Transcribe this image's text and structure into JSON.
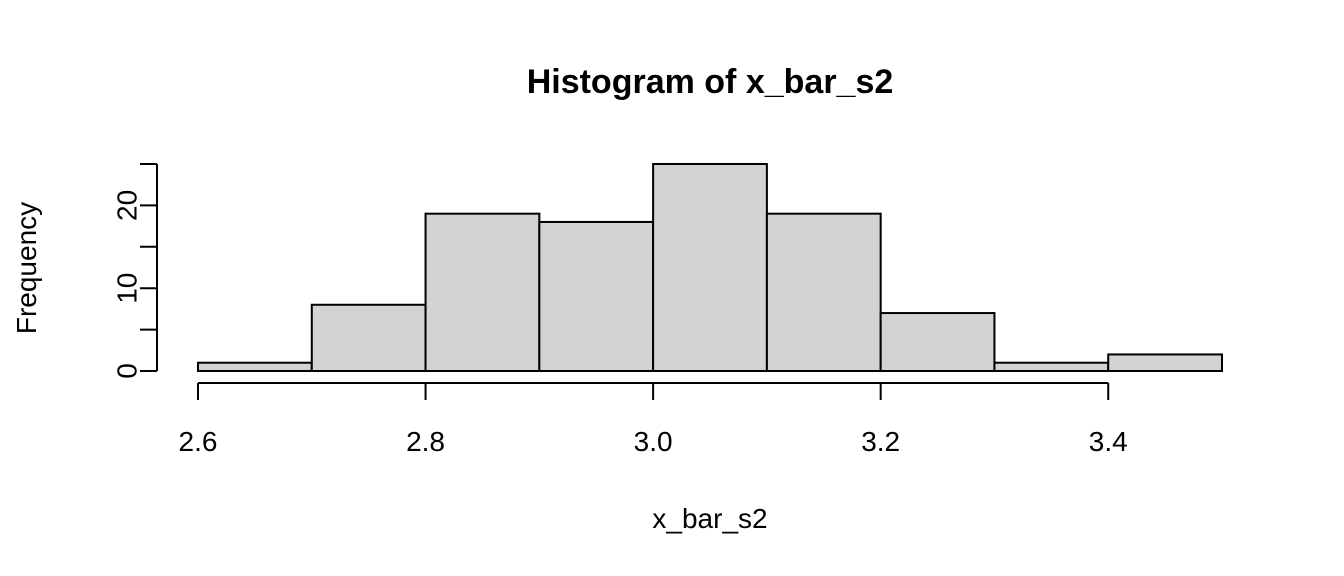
{
  "chart_data": {
    "type": "bar",
    "title": "Histogram of x_bar_s2",
    "xlabel": "x_bar_s2",
    "ylabel": "Frequency",
    "bins": [
      {
        "x0": 2.6,
        "x1": 2.7,
        "count": 1
      },
      {
        "x0": 2.7,
        "x1": 2.8,
        "count": 8
      },
      {
        "x0": 2.8,
        "x1": 2.9,
        "count": 19
      },
      {
        "x0": 2.9,
        "x1": 3.0,
        "count": 18
      },
      {
        "x0": 3.0,
        "x1": 3.1,
        "count": 25
      },
      {
        "x0": 3.1,
        "x1": 3.2,
        "count": 19
      },
      {
        "x0": 3.2,
        "x1": 3.3,
        "count": 7
      },
      {
        "x0": 3.3,
        "x1": 3.4,
        "count": 1
      },
      {
        "x0": 3.4,
        "x1": 3.5,
        "count": 2
      }
    ],
    "xticks": [
      2.6,
      2.8,
      3.0,
      3.2,
      3.4
    ],
    "xtick_labels": [
      "2.6",
      "2.8",
      "3.0",
      "3.2",
      "3.4"
    ],
    "yticks": [
      0,
      5,
      10,
      15,
      20,
      25
    ],
    "ytick_labels": [
      "0",
      "",
      "10",
      "",
      "20",
      ""
    ],
    "xlim": [
      2.6,
      3.5
    ],
    "ylim": [
      0,
      25
    ],
    "bar_fill": "#d3d3d3",
    "bar_stroke": "#000000",
    "grid": false
  }
}
